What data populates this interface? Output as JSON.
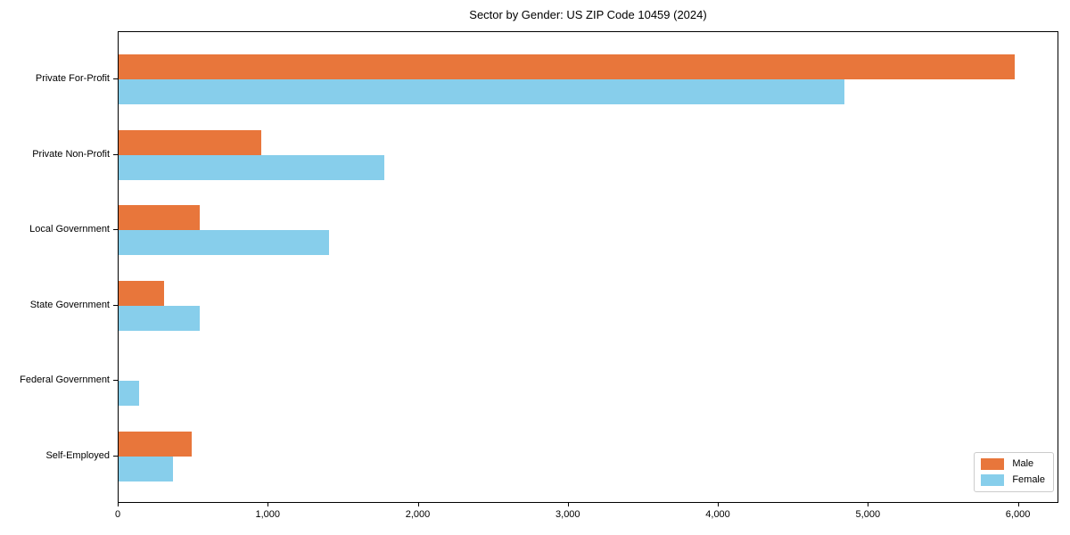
{
  "chart_data": {
    "type": "bar",
    "orientation": "horizontal",
    "title": "Sector by Gender: US ZIP Code 10459 (2024)",
    "categories": [
      "Private For-Profit",
      "Private Non-Profit",
      "Local Government",
      "State Government",
      "Federal Government",
      "Self-Employed"
    ],
    "series": [
      {
        "name": "Male",
        "color": "#e8763b",
        "values": [
          5970,
          950,
          540,
          305,
          0,
          490
        ]
      },
      {
        "name": "Female",
        "color": "#87ceeb",
        "values": [
          4840,
          1770,
          1400,
          540,
          137,
          365
        ]
      }
    ],
    "xlabel": "",
    "ylabel": "",
    "xlim": [
      0,
      6270
    ],
    "x_ticks": [
      0,
      1000,
      2000,
      3000,
      4000,
      5000,
      6000
    ],
    "x_tick_labels": [
      "0",
      "1,000",
      "2,000",
      "3,000",
      "4,000",
      "5,000",
      "6,000"
    ],
    "grid": false,
    "legend": {
      "position": "lower right"
    }
  }
}
